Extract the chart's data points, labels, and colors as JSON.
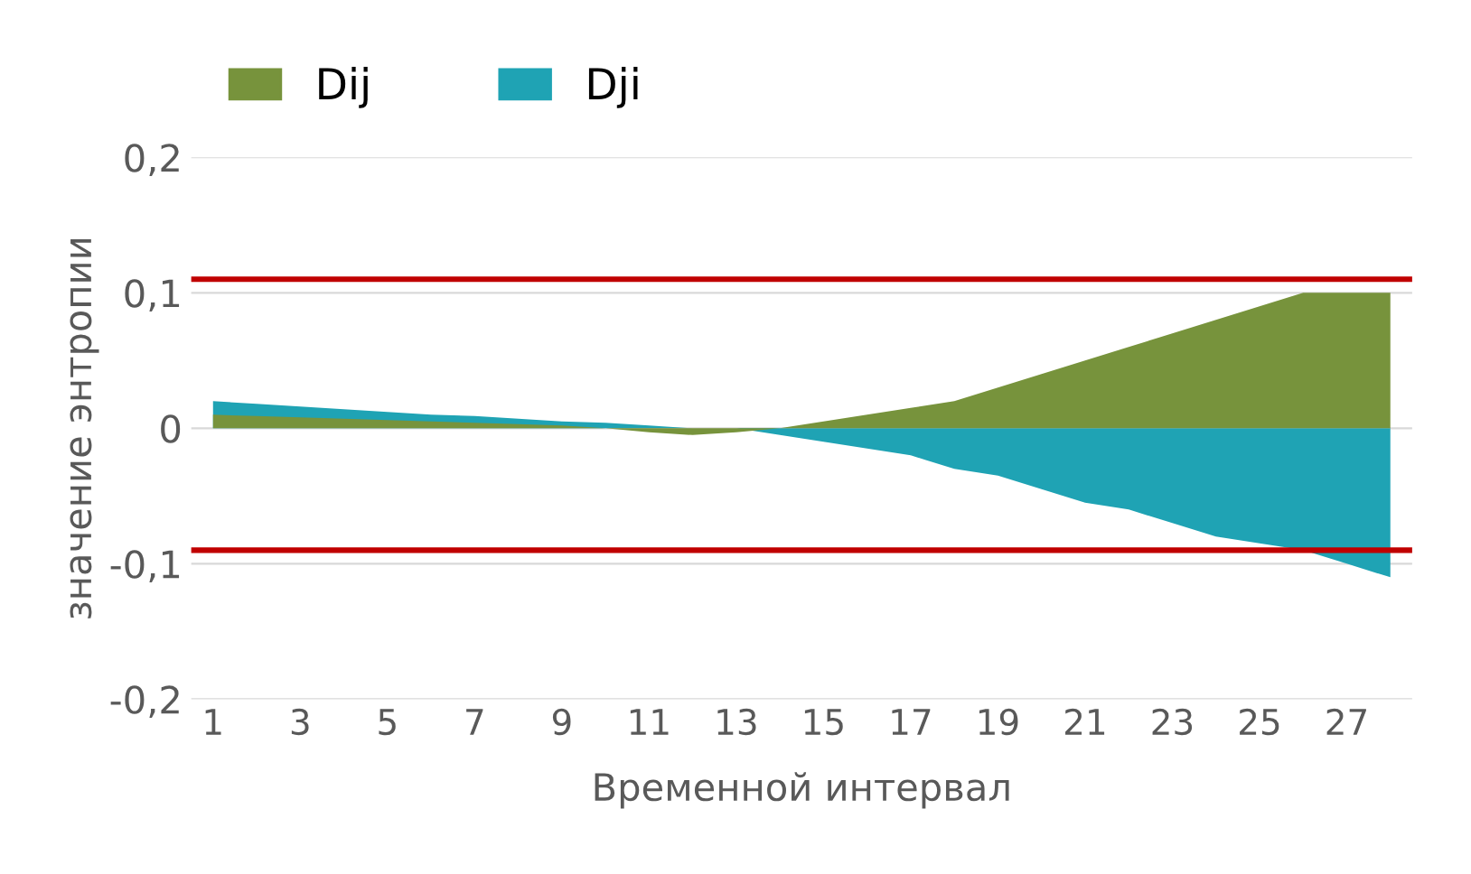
{
  "chart_data": {
    "type": "area",
    "xlabel": "Временной интервал",
    "ylabel": "значение энтропии",
    "categories": [
      "1",
      null,
      "3",
      null,
      "5",
      null,
      "7",
      null,
      "9",
      null,
      "11",
      null,
      "13",
      null,
      "15",
      null,
      "17",
      null,
      "19",
      null,
      "21",
      null,
      "23",
      null,
      "25",
      null,
      "27",
      null
    ],
    "series": [
      {
        "name": "Dij",
        "color": "#77933c",
        "values": [
          0.01,
          0.009,
          0.008,
          0.007,
          0.006,
          0.005,
          0.004,
          0.003,
          0.002,
          0.0,
          -0.003,
          -0.005,
          -0.003,
          0.0,
          0.005,
          0.01,
          0.015,
          0.02,
          0.03,
          0.04,
          0.05,
          0.06,
          0.07,
          0.08,
          0.09,
          0.1,
          0.1,
          0.1
        ]
      },
      {
        "name": "Dji",
        "color": "#1fa3b4",
        "values": [
          0.02,
          0.018,
          0.016,
          0.014,
          0.012,
          0.01,
          0.009,
          0.007,
          0.005,
          0.004,
          0.002,
          0.0,
          0.0,
          -0.005,
          -0.01,
          -0.015,
          -0.02,
          -0.03,
          -0.035,
          -0.045,
          -0.055,
          -0.06,
          -0.07,
          -0.08,
          -0.085,
          -0.09,
          -0.1,
          -0.11
        ]
      }
    ],
    "ylim": [
      -0.2,
      0.2
    ],
    "yticks": [
      {
        "value": -0.2,
        "label": "-0,2"
      },
      {
        "value": -0.1,
        "label": "-0,1"
      },
      0,
      {
        "value": 0.1,
        "label": "0,1"
      },
      {
        "value": 0.2,
        "label": "0,2"
      }
    ],
    "ref_lines": [
      {
        "axis": "y",
        "value": 0.11,
        "color": "#c00000"
      },
      {
        "axis": "y",
        "value": -0.09,
        "color": "#c00000"
      }
    ],
    "grid": "y",
    "legend": "top left"
  }
}
